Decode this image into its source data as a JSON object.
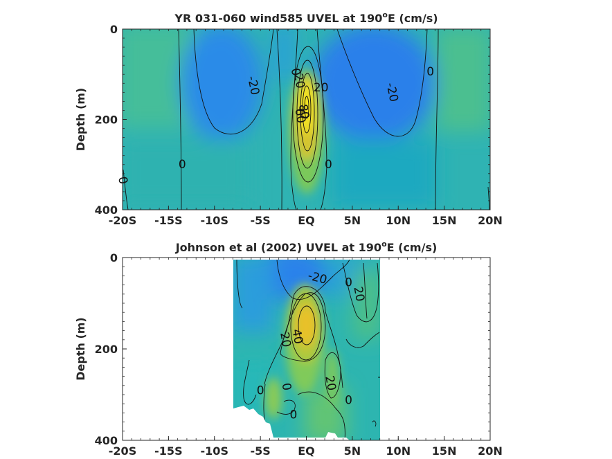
{
  "chart_data": [
    {
      "type": "heatmap",
      "title_main": "YR 031-060 wind585 UVEL at 190",
      "title_sup": "o",
      "title_tail": "E (cm/s)",
      "ylabel": "Depth (m)",
      "xlabel": "",
      "x_ticks": [
        "-20S",
        "-15S",
        "-10S",
        "-5S",
        "EQ",
        "5N",
        "10N",
        "15N",
        "20N"
      ],
      "x_tick_values": [
        -20,
        -15,
        -10,
        -5,
        0,
        5,
        10,
        15,
        20
      ],
      "y_ticks": [
        "0",
        "200",
        "400"
      ],
      "y_tick_values": [
        0,
        200,
        400
      ],
      "xlim": [
        -20,
        20
      ],
      "ylim": [
        0,
        400
      ],
      "y_reversed": true,
      "colormap": "parula",
      "contour_levels": [
        -20,
        0,
        20,
        40,
        60,
        80
      ],
      "contour_labels": [
        {
          "text": "-20",
          "x": -5.8,
          "y": 125,
          "rot": 78
        },
        {
          "text": "-20",
          "x": 9.3,
          "y": 140,
          "rot": 78
        },
        {
          "text": "0",
          "x": -1.2,
          "y": 95,
          "rot": 80
        },
        {
          "text": "0",
          "x": 13.5,
          "y": 95,
          "rot": 0
        },
        {
          "text": "0",
          "x": -13.5,
          "y": 300,
          "rot": 0
        },
        {
          "text": "0",
          "x": -20,
          "y": 335,
          "rot": 80
        },
        {
          "text": "0",
          "x": 2.4,
          "y": 300,
          "rot": 0
        },
        {
          "text": "20",
          "x": -0.8,
          "y": 115,
          "rot": 80
        },
        {
          "text": "20",
          "x": 1.6,
          "y": 130,
          "rot": 0
        },
        {
          "text": "60",
          "x": -0.7,
          "y": 192,
          "rot": 80
        },
        {
          "text": "80",
          "x": -0.3,
          "y": 183,
          "rot": 80
        }
      ],
      "features": [
        {
          "kind": "jet",
          "x": 0,
          "y": 170,
          "value": 90
        }
      ]
    },
    {
      "type": "heatmap",
      "title_main": "Johnson et al (2002) UVEL at 190",
      "title_sup": "o",
      "title_tail": "E (cm/s)",
      "ylabel": "Depth (m)",
      "xlabel": "",
      "x_ticks": [
        "-20S",
        "-15S",
        "-10S",
        "-5S",
        "EQ",
        "5N",
        "10N",
        "15N",
        "20N"
      ],
      "x_tick_values": [
        -20,
        -15,
        -10,
        -5,
        0,
        5,
        10,
        15,
        20
      ],
      "y_ticks": [
        "0",
        "200",
        "400"
      ],
      "y_tick_values": [
        0,
        200,
        400
      ],
      "xlim": [
        -20,
        20
      ],
      "ylim": [
        0,
        400
      ],
      "y_reversed": true,
      "colormap": "parula",
      "data_x_range": [
        -8,
        8
      ],
      "contour_levels": [
        -20,
        0,
        20,
        40
      ],
      "contour_labels": [
        {
          "text": "-20",
          "x": 1.2,
          "y": 45,
          "rot": 15
        },
        {
          "text": "0",
          "x": 4.6,
          "y": 55,
          "rot": 0
        },
        {
          "text": "20",
          "x": 5.7,
          "y": 80,
          "rot": 80
        },
        {
          "text": "20",
          "x": -2.3,
          "y": 180,
          "rot": 80
        },
        {
          "text": "40",
          "x": -1.0,
          "y": 173,
          "rot": 80
        },
        {
          "text": "0",
          "x": -2.2,
          "y": 283,
          "rot": 80
        },
        {
          "text": "0",
          "x": -5.0,
          "y": 292,
          "rot": 0
        },
        {
          "text": "20",
          "x": 2.6,
          "y": 275,
          "rot": 80
        },
        {
          "text": "0",
          "x": 4.6,
          "y": 313,
          "rot": 0
        },
        {
          "text": "0",
          "x": -1.4,
          "y": 345,
          "rot": 0
        }
      ],
      "features": [
        {
          "kind": "jet",
          "x": 0,
          "y": 150,
          "value": 50
        }
      ]
    }
  ]
}
